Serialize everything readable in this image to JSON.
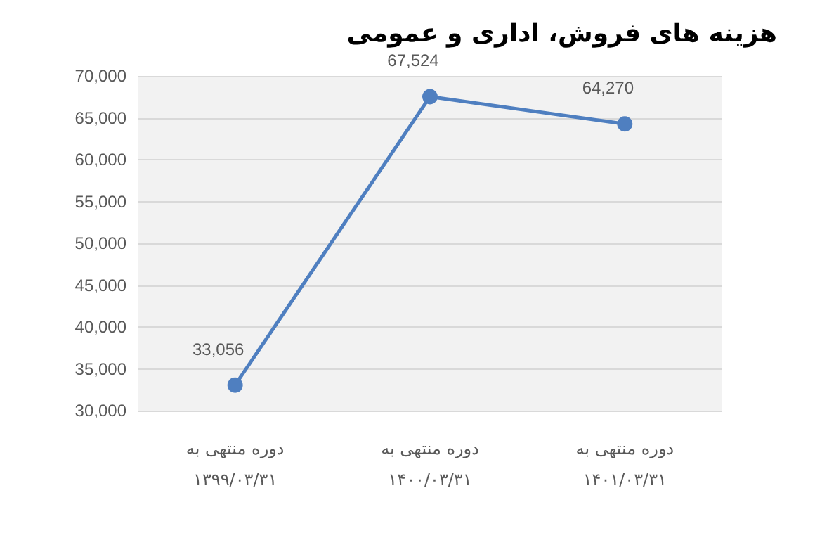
{
  "chart_data": {
    "type": "line",
    "title": "هزینه های فروش، اداری و عمومی",
    "categories": [
      "دوره منتهی به\n۱۳۹۹/۰۳/۳۱",
      "دوره منتهی به\n۱۴۰۰/۰۳/۳۱",
      "دوره منتهی به\n۱۴۰۱/۰۳/۳۱"
    ],
    "series": [
      {
        "color": "#4f7fc0",
        "values": [
          33056,
          67524,
          64270
        ],
        "value_labels": [
          "33,056",
          "67,524",
          "64,270"
        ]
      }
    ],
    "ylim": [
      30000,
      70000
    ],
    "yticks": [
      {
        "value": 30000,
        "label": "30,000"
      },
      {
        "value": 35000,
        "label": "35,000"
      },
      {
        "value": 40000,
        "label": "40,000"
      },
      {
        "value": 45000,
        "label": "45,000"
      },
      {
        "value": 50000,
        "label": "50,000"
      },
      {
        "value": 55000,
        "label": "55,000"
      },
      {
        "value": 60000,
        "label": "60,000"
      },
      {
        "value": 65000,
        "label": "65,000"
      },
      {
        "value": 70000,
        "label": "70,000"
      }
    ],
    "grid": "y",
    "marker": "circle",
    "line_style": "solid"
  }
}
